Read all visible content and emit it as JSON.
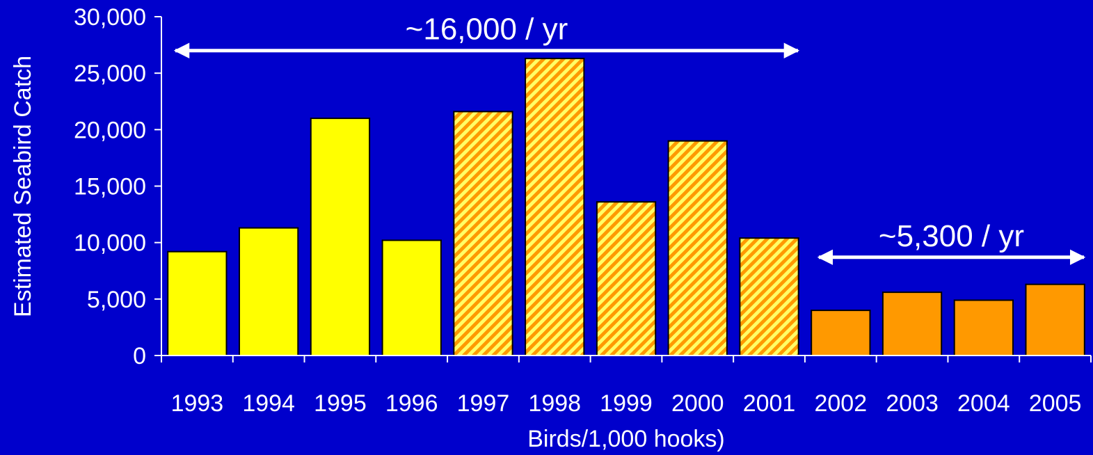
{
  "chart_data": {
    "type": "bar",
    "categories": [
      "1993",
      "1994",
      "1995",
      "1996",
      "1997",
      "1998",
      "1999",
      "2000",
      "2001",
      "2002",
      "2003",
      "2004",
      "2005"
    ],
    "values": [
      9200,
      11300,
      21000,
      10200,
      21600,
      26300,
      13600,
      19000,
      10400,
      4000,
      5600,
      4900,
      6300
    ],
    "bar_styles": [
      "solid-yellow",
      "solid-yellow",
      "solid-yellow",
      "solid-yellow",
      "hatched",
      "hatched",
      "hatched",
      "hatched",
      "hatched",
      "solid-orange",
      "solid-orange",
      "solid-orange",
      "solid-orange"
    ],
    "title": "",
    "xlabel": "Birds/1,000 hooks)",
    "ylabel": "Estimated Seabird Catch",
    "ylim": [
      0,
      30000
    ],
    "yticks": [
      0,
      5000,
      10000,
      15000,
      20000,
      25000,
      30000
    ],
    "ytick_labels": [
      "0",
      "5,000",
      "10,000",
      "15,000",
      "20,000",
      "25,000",
      "30,000"
    ],
    "grid": false,
    "legend": "none",
    "annotations": [
      {
        "text": "~16,000 / yr",
        "from": "1993",
        "to": "2001",
        "y": 27000
      },
      {
        "text": "~5,300 / yr",
        "from": "2002",
        "to": "2005",
        "y": 8700
      }
    ]
  },
  "colors": {
    "background": "#0000CC",
    "axis": "#FFFFFF",
    "text": "#FFFFFF",
    "yellow": "#FFFF00",
    "orange": "#FF9900",
    "hatch_base": "#FFFF66",
    "hatch_stripe": "#FF9900",
    "bar_outline": "#000000"
  }
}
